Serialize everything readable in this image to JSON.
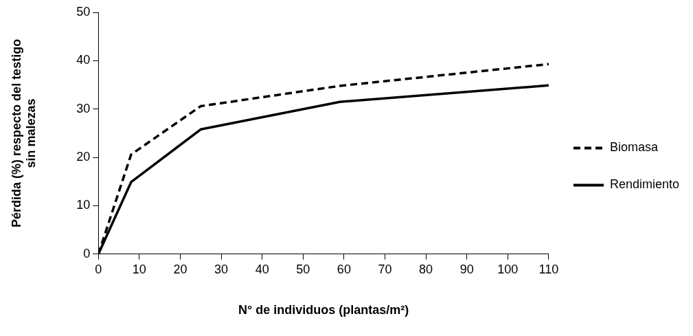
{
  "chart_data": {
    "type": "line",
    "xlabel": "N° de individuos (plantas/m²)",
    "ylabel": "Pérdida (%) respecto del testigo\nsin malezas",
    "x": [
      0,
      8,
      25,
      59,
      110
    ],
    "series": [
      {
        "name": "Biomasa",
        "color": "#000000",
        "line_style": "dashed",
        "values": [
          0,
          20.6,
          30.6,
          34.8,
          39.3
        ]
      },
      {
        "name": "Rendimiento",
        "color": "#000000",
        "line_style": "solid",
        "values": [
          0,
          14.9,
          25.8,
          31.5,
          34.9
        ]
      }
    ],
    "xlim": [
      0,
      110
    ],
    "xticks": [
      0,
      10,
      20,
      30,
      40,
      50,
      60,
      70,
      80,
      90,
      100,
      110
    ],
    "ylim": [
      0,
      50
    ],
    "yticks": [
      0,
      10,
      20,
      30,
      40,
      50
    ],
    "grid": false,
    "legend": "right",
    "marker": "none"
  }
}
